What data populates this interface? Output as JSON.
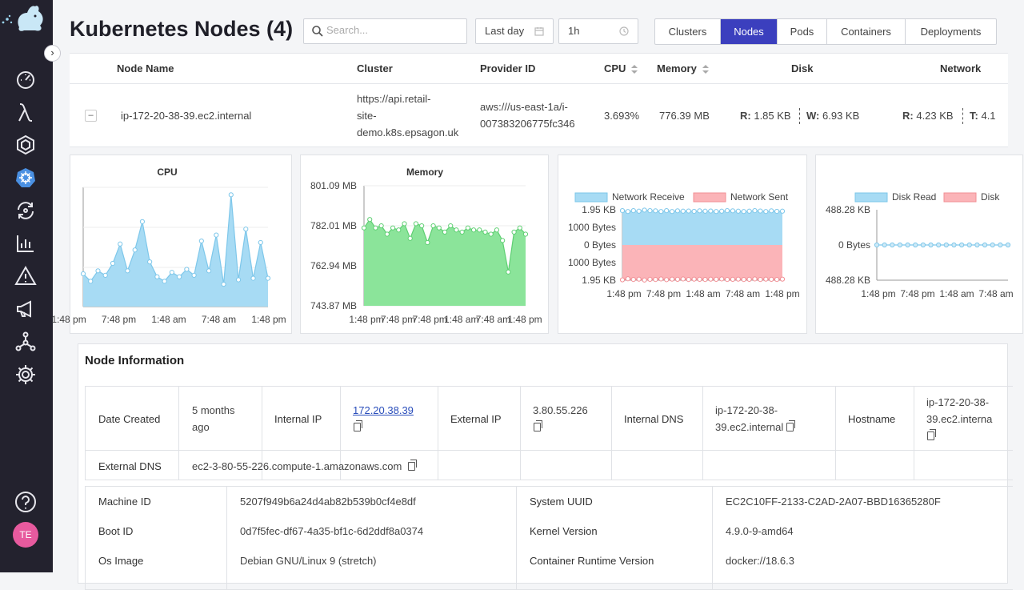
{
  "header": {
    "title": "Kubernetes Nodes (4)",
    "search_placeholder": "Search...",
    "time_range": "Last day",
    "interval": "1h"
  },
  "tabs": [
    {
      "label": "Clusters"
    },
    {
      "label": "Nodes",
      "active": true
    },
    {
      "label": "Pods"
    },
    {
      "label": "Containers"
    },
    {
      "label": "Deployments"
    }
  ],
  "sidebar": {
    "avatar": "TE",
    "icons": [
      "dashboard-icon",
      "lambda-icon",
      "hexagon-icon",
      "kubernetes-icon",
      "refresh-icon",
      "bar-chart-icon",
      "warning-icon",
      "megaphone-icon",
      "network-icon",
      "gear-icon"
    ],
    "help": "help-icon"
  },
  "table": {
    "columns": [
      "Node Name",
      "Cluster",
      "Provider ID",
      "CPU",
      "Memory",
      "Disk",
      "Network"
    ],
    "row": {
      "node_name": "ip-172-20-38-39.ec2.internal",
      "cluster": [
        "https://api.retail-",
        "site-",
        "demo.k8s.epsagon.uk"
      ],
      "provider_id": [
        "aws:///us-east-1a/i-",
        "007383206775fc346"
      ],
      "cpu": "3.693%",
      "memory": "776.39 MB",
      "disk_read_label": "R:",
      "disk_read": "1.85 KB",
      "disk_write_label": "W:",
      "disk_write": "6.93 KB",
      "net_receive_label": "R:",
      "net_receive": "4.23 KB",
      "net_transmit_label": "T:",
      "net_transmit": "4.1"
    }
  },
  "chart_data": [
    {
      "type": "area",
      "title": "CPU",
      "x_ticks": [
        "1:48 pm",
        "7:48 pm",
        "1:48 am",
        "7:48 am",
        "1:48 pm"
      ],
      "series": [
        {
          "values": [
            22,
            17,
            24,
            21,
            29,
            42,
            24,
            38,
            57,
            30,
            20,
            17,
            23,
            20,
            25,
            21,
            44,
            24,
            48,
            15,
            75,
            18,
            52,
            19,
            43,
            19
          ]
        }
      ],
      "color": "#a7dbf4"
    },
    {
      "type": "area",
      "title": "Memory",
      "y_ticks": [
        "801.09 MB",
        "782.01 MB",
        "762.94 MB",
        "743.87 MB"
      ],
      "ylim": [
        743.87,
        801.09
      ],
      "x_ticks": [
        "1:48 pm",
        "7:48 pm",
        "7:48 pm",
        "1:48 am",
        "7:48 am",
        "1:48 pm"
      ],
      "series": [
        {
          "values": [
            781,
            785,
            781,
            782,
            778,
            781,
            780,
            783,
            776,
            783,
            782,
            774,
            782,
            781,
            779,
            782,
            780,
            779,
            781,
            780,
            780,
            779,
            778,
            780,
            775,
            760,
            779,
            781,
            778
          ]
        }
      ],
      "color": "#8be49a"
    },
    {
      "type": "area",
      "legend": [
        "Network Receive",
        "Network Sent"
      ],
      "legend_placement": "top",
      "y_ticks": [
        "1.95 KB",
        "1000 Bytes",
        "0 Bytes",
        "1000 Bytes",
        "1.95 KB"
      ],
      "ylim": [
        -2000,
        2000
      ],
      "x_ticks": [
        "1:48 pm",
        "7:48 pm",
        "1:48 am",
        "7:48 am",
        "1:48 pm"
      ],
      "series": [
        {
          "name": "Network Receive",
          "values": [
            1950,
            1900,
            1950,
            1920,
            1980,
            1950,
            1940,
            1900,
            1950,
            1900,
            1940,
            1920,
            1930,
            1910,
            1940,
            1920,
            1930,
            1900,
            1920,
            1950,
            1940,
            1920,
            1900,
            1920,
            1950,
            1930,
            1900,
            1940,
            1910,
            1920
          ]
        },
        {
          "name": "Network Sent",
          "values": [
            -1980,
            -1920,
            -1960,
            -1940,
            -1990,
            -1950,
            -1960,
            -1930,
            -1970,
            -1940,
            -1950,
            -1930,
            -1960,
            -1940,
            -1950,
            -1960,
            -1940,
            -1950,
            -1930,
            -1960,
            -1950,
            -1940,
            -1960,
            -1950,
            -1930,
            -1960,
            -1940,
            -1950,
            -1960,
            -1940
          ]
        }
      ],
      "colors": [
        "#a7dbf4",
        "#fbb4b8"
      ]
    },
    {
      "type": "area",
      "legend": [
        "Disk Read",
        "Disk"
      ],
      "legend_placement": "top",
      "y_ticks": [
        "488.28 KB",
        "0 Bytes",
        "488.28 KB"
      ],
      "x_ticks": [
        "1:48 pm",
        "7:48 pm",
        "1:48 am",
        "7:48 am"
      ],
      "series": [
        {
          "name": "Disk Read",
          "values": [
            0,
            0,
            0,
            0,
            0,
            0,
            0,
            0,
            0,
            0,
            0,
            0,
            0,
            0,
            0,
            0,
            0,
            0
          ]
        }
      ],
      "colors": [
        "#a7dbf4",
        "#fbb4b8"
      ]
    }
  ],
  "info": {
    "title": "Node Information",
    "date_created_label": "Date Created",
    "date_created": [
      "5 months",
      "ago"
    ],
    "internal_ip_label": "Internal IP",
    "internal_ip": "172.20.38.39",
    "external_ip_label": "External IP",
    "external_ip": "3.80.55.226",
    "internal_dns_label": "Internal DNS",
    "internal_dns": [
      "ip-172-20-38-",
      "39.ec2.internal"
    ],
    "hostname_label": "Hostname",
    "hostname": [
      "ip-172-20-38-",
      "39.ec2.interna"
    ],
    "external_dns_label": "External DNS",
    "external_dns": "ec2-3-80-55-226.compute-1.amazonaws.com",
    "machine_id_label": "Machine ID",
    "machine_id": "5207f949b6a24d4ab82b539b0cf4e8df",
    "system_uuid_label": "System UUID",
    "system_uuid": "EC2C10FF-2133-C2AD-2A07-BBD16365280F",
    "boot_id_label": "Boot ID",
    "boot_id": "0d7f5fec-df67-4a35-bf1c-6d2ddf8a0374",
    "kernel_version_label": "Kernel Version",
    "kernel_version": "4.9.0-9-amd64",
    "os_image_label": "Os Image",
    "os_image": "Debian GNU/Linux 9 (stretch)",
    "container_runtime_label": "Container Runtime Version",
    "container_runtime": "docker://18.6.3"
  }
}
